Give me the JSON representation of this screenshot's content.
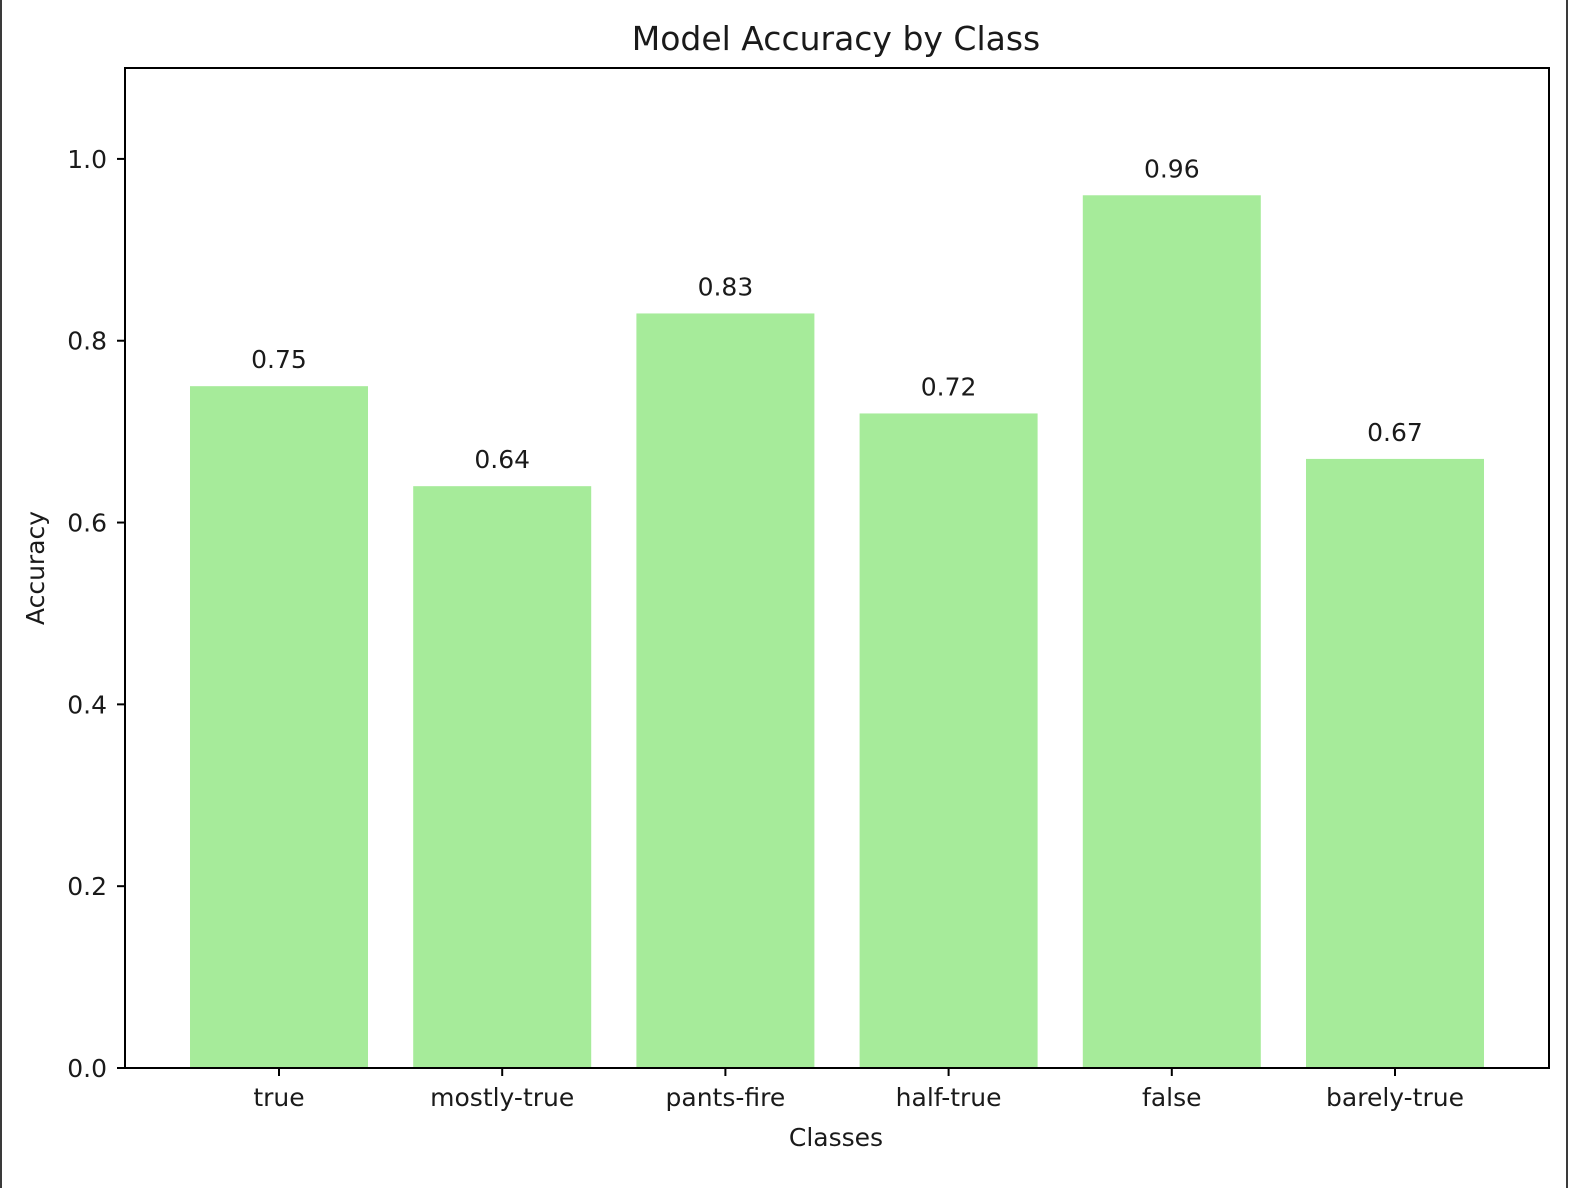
{
  "chart_data": {
    "type": "bar",
    "title": "Model Accuracy by Class",
    "xlabel": "Classes",
    "ylabel": "Accuracy",
    "categories": [
      "true",
      "mostly-true",
      "pants-fire",
      "half-true",
      "false",
      "barely-true"
    ],
    "values": [
      0.75,
      0.64,
      0.83,
      0.72,
      0.96,
      0.67
    ],
    "value_labels": [
      "0.75",
      "0.64",
      "0.83",
      "0.72",
      "0.96",
      "0.67"
    ],
    "ylim": [
      0,
      1.1
    ],
    "yticks": [
      0.0,
      0.2,
      0.4,
      0.6,
      0.8,
      1.0
    ],
    "ytick_labels": [
      "0.0",
      "0.2",
      "0.4",
      "0.6",
      "0.8",
      "1.0"
    ],
    "grid": false,
    "bar_color": "#a6eb9a"
  }
}
